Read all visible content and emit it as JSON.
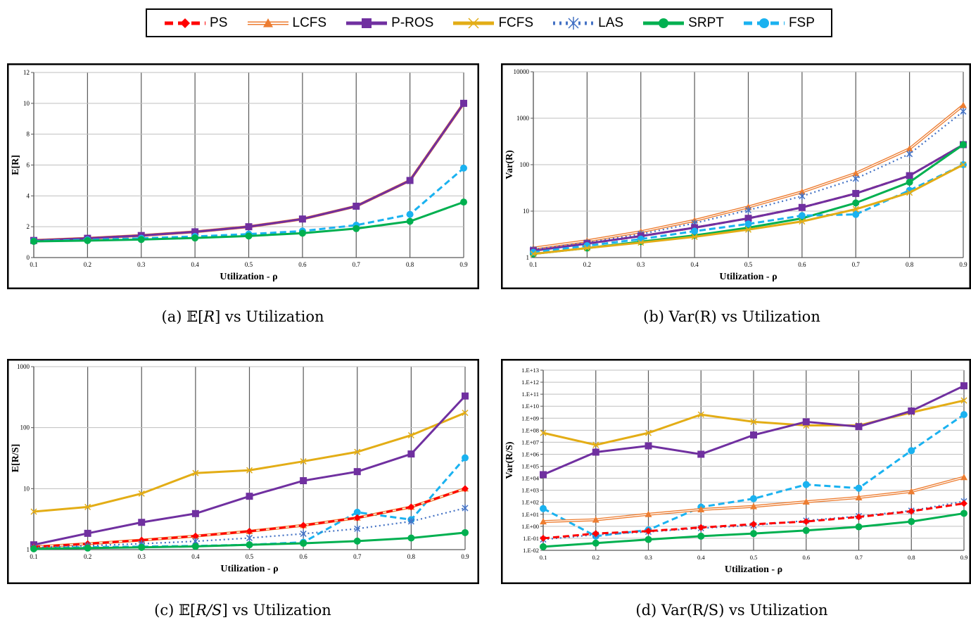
{
  "legend": [
    {
      "name": "PS",
      "color": "#ff0000",
      "dash": "dash",
      "marker": "diamond"
    },
    {
      "name": "LCFS",
      "color": "#ed7d31",
      "dash": "double",
      "marker": "triangle"
    },
    {
      "name": "P-ROS",
      "color": "#7030a0",
      "dash": "solid",
      "marker": "square"
    },
    {
      "name": "FCFS",
      "color": "#e3ad16",
      "dash": "solid",
      "marker": "x"
    },
    {
      "name": "LAS",
      "color": "#4472c4",
      "dash": "dot",
      "marker": "star"
    },
    {
      "name": "SRPT",
      "color": "#00b050",
      "dash": "solid",
      "marker": "circle"
    },
    {
      "name": "FSP",
      "color": "#1ab2f0",
      "dash": "dash",
      "marker": "circle"
    }
  ],
  "captions": {
    "a_pre": "(a) ",
    "a_sym": "𝔼[",
    "a_var": "R",
    "a_post": "] vs Utilization",
    "b": "(b)  Var(R) vs Utilization",
    "c_pre": "(c) ",
    "c_sym": "𝔼[",
    "c_var": "R/S",
    "c_post": "] vs Utilization",
    "d": "(d)  Var(R/S) vs Utilization"
  },
  "chart_data": [
    {
      "id": "a",
      "type": "line",
      "ylabel": "E[R]",
      "xlabel": "Utilization - ρ",
      "x": [
        0.1,
        0.2,
        0.3,
        0.4,
        0.5,
        0.6,
        0.7,
        0.8,
        0.9
      ],
      "xticks": [
        "0.1",
        "0.2",
        "0.3",
        "0.4",
        "0.5",
        "0.6",
        "0.7",
        "0.8",
        "0.9"
      ],
      "ylim": [
        0,
        12
      ],
      "yscale": "linear",
      "yticks": [
        0,
        2,
        4,
        6,
        8,
        10,
        12
      ],
      "yticklabels": [
        "0",
        "2",
        "4",
        "6",
        "8",
        "10",
        "12"
      ],
      "grid": true,
      "series": [
        {
          "name": "FCFS",
          "values": [
            1.11,
            1.25,
            1.43,
            1.67,
            2.0,
            2.5,
            3.33,
            5.0,
            10.0
          ]
        },
        {
          "name": "LCFS",
          "values": [
            1.11,
            1.25,
            1.43,
            1.67,
            2.0,
            2.5,
            3.33,
            5.0,
            10.0
          ]
        },
        {
          "name": "LAS",
          "values": [
            1.11,
            1.25,
            1.43,
            1.67,
            2.0,
            2.5,
            3.33,
            5.0,
            10.0
          ]
        },
        {
          "name": "PS",
          "values": [
            1.11,
            1.25,
            1.43,
            1.67,
            2.0,
            2.5,
            3.33,
            5.0,
            10.0
          ]
        },
        {
          "name": "P-ROS",
          "values": [
            1.11,
            1.25,
            1.43,
            1.67,
            2.0,
            2.5,
            3.33,
            5.0,
            10.0
          ]
        },
        {
          "name": "FSP",
          "values": [
            1.07,
            1.15,
            1.25,
            1.37,
            1.52,
            1.72,
            2.1,
            2.8,
            5.8
          ]
        },
        {
          "name": "SRPT",
          "values": [
            1.05,
            1.1,
            1.17,
            1.27,
            1.4,
            1.58,
            1.88,
            2.35,
            3.6
          ]
        }
      ]
    },
    {
      "id": "b",
      "type": "line",
      "ylabel": "Var(R)",
      "xlabel": "Utilization - ρ",
      "x": [
        0.1,
        0.2,
        0.3,
        0.4,
        0.5,
        0.6,
        0.7,
        0.8,
        0.9
      ],
      "xticks": [
        "0.1",
        "0.2",
        "0.3",
        "0.4",
        "0.5",
        "0.6",
        "0.7",
        "0.8",
        "0.9"
      ],
      "ylim": [
        1,
        10000
      ],
      "yscale": "log",
      "yticks": [
        1,
        10,
        100,
        1000,
        10000
      ],
      "yticklabels": [
        "1",
        "10",
        "100",
        "1000",
        "10000"
      ],
      "grid": true,
      "series": [
        {
          "name": "LCFS",
          "values": [
            1.6,
            2.3,
            3.6,
            6.3,
            12.3,
            26,
            65,
            220,
            1900
          ]
        },
        {
          "name": "LAS",
          "values": [
            1.5,
            2.1,
            3.2,
            5.5,
            10.5,
            21,
            50,
            170,
            1400
          ]
        },
        {
          "name": "PS",
          "values": [
            1.4,
            2.0,
            2.9,
            4.4,
            7.0,
            12,
            24,
            58,
            270
          ]
        },
        {
          "name": "P-ROS",
          "values": [
            1.4,
            2.0,
            2.9,
            4.4,
            7.0,
            12,
            24,
            58,
            270
          ]
        },
        {
          "name": "SRPT",
          "values": [
            1.2,
            1.6,
            2.2,
            3.0,
            4.4,
            7.0,
            15,
            42,
            270
          ]
        },
        {
          "name": "FSP",
          "values": [
            1.3,
            1.8,
            2.5,
            3.7,
            5.3,
            8.0,
            8.5,
            28,
            100
          ]
        },
        {
          "name": "FCFS",
          "values": [
            1.2,
            1.6,
            2.1,
            2.8,
            4.0,
            6.0,
            11,
            25,
            100
          ]
        }
      ]
    },
    {
      "id": "c",
      "type": "line",
      "ylabel": "E[R/S]",
      "xlabel": "Utilization - ρ",
      "x": [
        0.1,
        0.2,
        0.3,
        0.4,
        0.5,
        0.6,
        0.7,
        0.8,
        0.9
      ],
      "xticks": [
        "0.1",
        "0.2",
        "0.3",
        "0.4",
        "0.5",
        "0.6",
        "0.7",
        "0.8",
        "0.9"
      ],
      "ylim": [
        1,
        1000
      ],
      "yscale": "log",
      "yticks": [
        1,
        10,
        100,
        1000
      ],
      "yticklabels": [
        "1",
        "10",
        "100",
        "1000"
      ],
      "grid": true,
      "series": [
        {
          "name": "FCFS",
          "values": [
            4.2,
            5.0,
            8.3,
            18,
            20,
            28,
            40,
            75,
            175
          ]
        },
        {
          "name": "P-ROS",
          "values": [
            1.2,
            1.85,
            2.8,
            3.9,
            7.5,
            13.5,
            19,
            37,
            330
          ]
        },
        {
          "name": "FSP",
          "values": [
            1.05,
            1.1,
            1.12,
            1.15,
            1.2,
            1.32,
            4.1,
            3.1,
            32
          ]
        },
        {
          "name": "LCFS",
          "values": [
            1.11,
            1.25,
            1.43,
            1.67,
            2.0,
            2.5,
            3.33,
            5.0,
            10.0
          ]
        },
        {
          "name": "PS",
          "values": [
            1.11,
            1.25,
            1.43,
            1.67,
            2.0,
            2.5,
            3.33,
            5.0,
            10.0
          ]
        },
        {
          "name": "LAS",
          "values": [
            1.08,
            1.16,
            1.25,
            1.37,
            1.55,
            1.82,
            2.2,
            2.9,
            4.8
          ]
        },
        {
          "name": "SRPT",
          "values": [
            1.03,
            1.06,
            1.09,
            1.13,
            1.2,
            1.27,
            1.38,
            1.55,
            1.9
          ]
        }
      ]
    },
    {
      "id": "d",
      "type": "line",
      "ylabel": "Var(R/S)",
      "xlabel": "Utilization - ρ",
      "x": [
        0.1,
        0.2,
        0.3,
        0.4,
        0.5,
        0.6,
        0.7,
        0.8,
        0.9
      ],
      "xticks": [
        "0.1",
        "0.2",
        "0.3",
        "0.4",
        "0.5",
        "0.6",
        "0.7",
        "0.8",
        "0.9"
      ],
      "ylim": [
        0.01,
        10000000000000.0
      ],
      "yscale": "log",
      "yticks": [
        0.01,
        0.1,
        1,
        10,
        100,
        1000,
        10000,
        100000,
        1000000,
        10000000,
        100000000,
        1000000000,
        10000000000,
        100000000000,
        1000000000000,
        10000000000000
      ],
      "yticklabels": [
        "1.E-02",
        "1.E-01",
        "1.E+00",
        "1.E+01",
        "1.E+02",
        "1.E+03",
        "1.E+04",
        "1.E+05",
        "1.E+06",
        "1.E+07",
        "1.E+08",
        "1.E+09",
        "1.E+10",
        "1.E+11",
        "1.E+12",
        "1.E+13"
      ],
      "grid": true,
      "series": [
        {
          "name": "FCFS",
          "values": [
            60000000,
            6000000,
            60000000,
            2000000000,
            500000000,
            250000000,
            250000000,
            3000000000,
            30000000000
          ]
        },
        {
          "name": "P-ROS",
          "values": [
            20000,
            1500000,
            5000000,
            1000000,
            40000000,
            500000000,
            200000000,
            4000000000,
            500000000000
          ]
        },
        {
          "name": "FSP",
          "values": [
            30,
            0.15,
            0.5,
            40,
            200,
            3000,
            1500,
            2000000,
            2000000000
          ]
        },
        {
          "name": "LCFS",
          "values": [
            2.5,
            3.5,
            10,
            25,
            45,
            110,
            250,
            800,
            12000
          ]
        },
        {
          "name": "LAS",
          "values": [
            0.08,
            0.2,
            0.35,
            0.7,
            1.2,
            3,
            7,
            20,
            120
          ]
        },
        {
          "name": "PS",
          "values": [
            0.1,
            0.25,
            0.4,
            0.8,
            1.5,
            2.5,
            6,
            18,
            80
          ]
        },
        {
          "name": "SRPT",
          "values": [
            0.02,
            0.04,
            0.08,
            0.15,
            0.25,
            0.45,
            0.9,
            2.5,
            12
          ]
        }
      ]
    }
  ]
}
